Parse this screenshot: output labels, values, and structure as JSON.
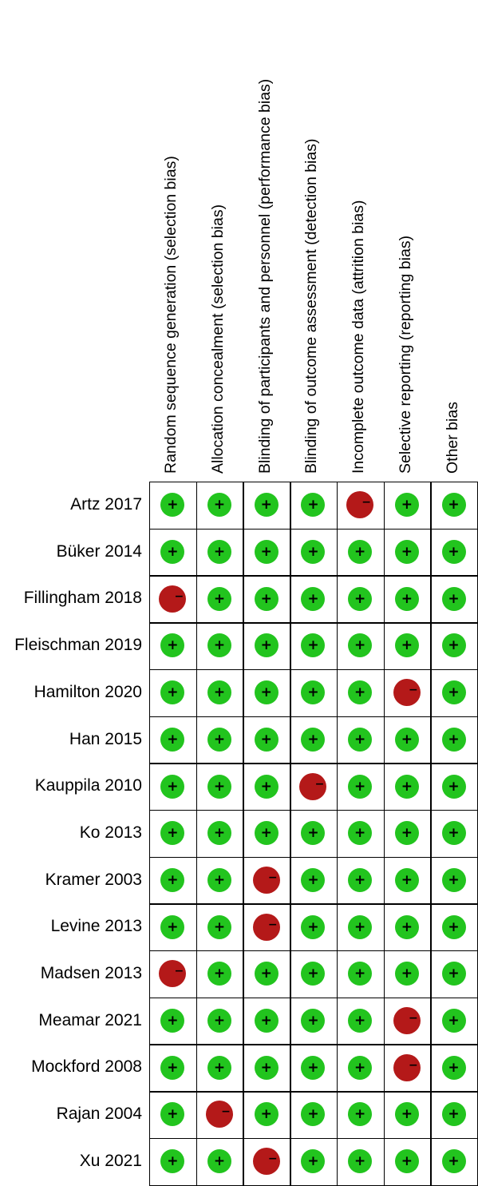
{
  "domains": [
    "Random sequence generation (selection bias)",
    "Allocation concealment (selection bias)",
    "Blinding of participants and personnel (performance bias)",
    "Blinding of outcome assessment (detection bias)",
    "Incomplete outcome data (attrition bias)",
    "Selective reporting (reporting bias)",
    "Other bias"
  ],
  "studies": [
    {
      "name": "Artz 2017",
      "ratings": [
        "low",
        "low",
        "low",
        "low",
        "high",
        "low",
        "low"
      ]
    },
    {
      "name": "Büker 2014",
      "ratings": [
        "low",
        "low",
        "low",
        "low",
        "low",
        "low",
        "low"
      ]
    },
    {
      "name": "Fillingham 2018",
      "ratings": [
        "high",
        "low",
        "low",
        "low",
        "low",
        "low",
        "low"
      ]
    },
    {
      "name": "Fleischman 2019",
      "ratings": [
        "low",
        "low",
        "low",
        "low",
        "low",
        "low",
        "low"
      ]
    },
    {
      "name": "Hamilton 2020",
      "ratings": [
        "low",
        "low",
        "low",
        "low",
        "low",
        "high",
        "low"
      ]
    },
    {
      "name": "Han 2015",
      "ratings": [
        "low",
        "low",
        "low",
        "low",
        "low",
        "low",
        "low"
      ]
    },
    {
      "name": "Kauppila 2010",
      "ratings": [
        "low",
        "low",
        "low",
        "high",
        "low",
        "low",
        "low"
      ]
    },
    {
      "name": "Ko 2013",
      "ratings": [
        "low",
        "low",
        "low",
        "low",
        "low",
        "low",
        "low"
      ]
    },
    {
      "name": "Kramer 2003",
      "ratings": [
        "low",
        "low",
        "high",
        "low",
        "low",
        "low",
        "low"
      ]
    },
    {
      "name": "Levine 2013",
      "ratings": [
        "low",
        "low",
        "high",
        "low",
        "low",
        "low",
        "low"
      ]
    },
    {
      "name": "Madsen 2013",
      "ratings": [
        "high",
        "low",
        "low",
        "low",
        "low",
        "low",
        "low"
      ]
    },
    {
      "name": "Meamar 2021",
      "ratings": [
        "low",
        "low",
        "low",
        "low",
        "low",
        "high",
        "low"
      ]
    },
    {
      "name": "Mockford 2008",
      "ratings": [
        "low",
        "low",
        "low",
        "low",
        "low",
        "high",
        "low"
      ]
    },
    {
      "name": "Rajan 2004",
      "ratings": [
        "low",
        "high",
        "low",
        "low",
        "low",
        "low",
        "low"
      ]
    },
    {
      "name": "Xu 2021",
      "ratings": [
        "low",
        "low",
        "high",
        "low",
        "low",
        "low",
        "low"
      ]
    }
  ],
  "symbols": {
    "low": "+",
    "high": "−"
  },
  "colors": {
    "low": "#22c41e",
    "high": "#b41919",
    "grid": "#000000"
  }
}
